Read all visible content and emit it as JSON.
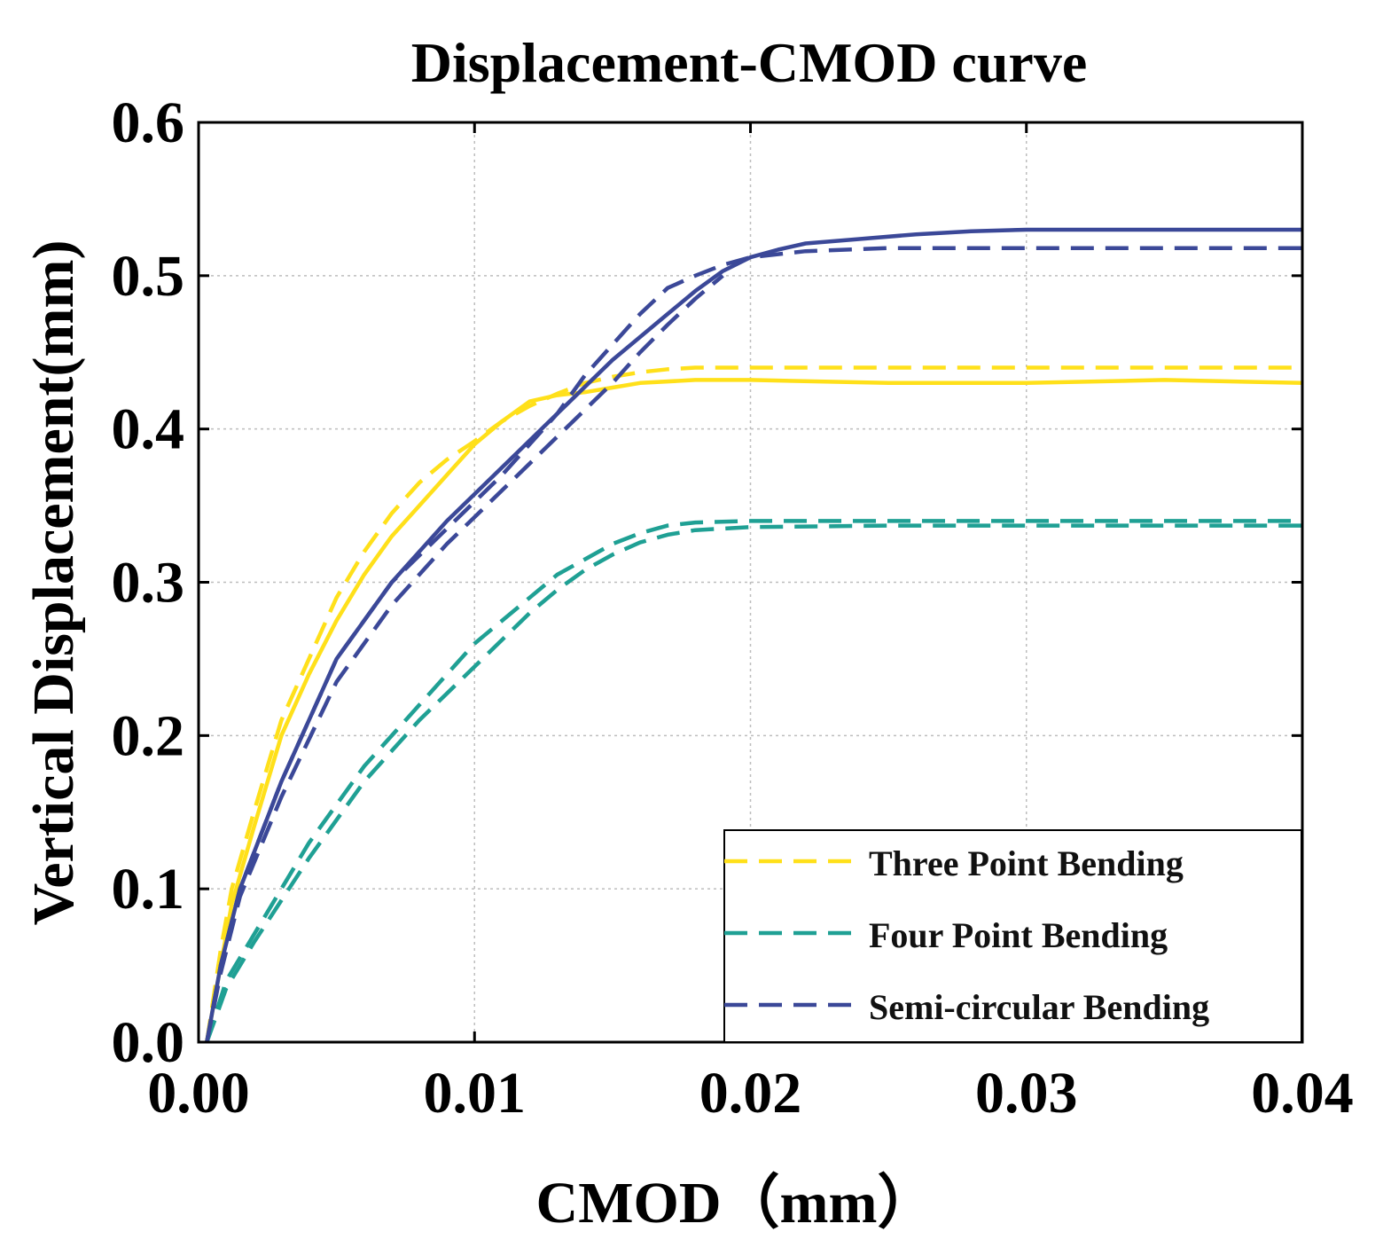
{
  "chart_data": {
    "type": "line",
    "title": "Displacement-CMOD curve",
    "xlabel": "CMOD（mm）",
    "ylabel": "Vertical Displacement(mm)",
    "xlim": [
      0,
      0.04
    ],
    "ylim": [
      0,
      0.6
    ],
    "xticks": [
      0,
      0.01,
      0.02,
      0.03,
      0.04
    ],
    "xtick_labels": [
      "0.00",
      "0.01",
      "0.02",
      "0.03",
      "0.04"
    ],
    "yticks": [
      0,
      0.1,
      0.2,
      0.3,
      0.4,
      0.5,
      0.6
    ],
    "ytick_labels": [
      "0.0",
      "0.1",
      "0.2",
      "0.3",
      "0.4",
      "0.5",
      "0.6"
    ],
    "grid": true,
    "legend_position": "bottom-right",
    "legend": [
      {
        "label": "Three Point Bending",
        "color": "#FFE01A"
      },
      {
        "label": "Four Point Bending",
        "color": "#1FA094"
      },
      {
        "label": "Semi-circular Bending",
        "color": "#3B4898"
      }
    ],
    "series": [
      {
        "name": "Three Point Bending (dashed)",
        "color": "#FFE01A",
        "dash": "dashed",
        "x": [
          0.0003,
          0.0008,
          0.0012,
          0.002,
          0.003,
          0.004,
          0.005,
          0.006,
          0.007,
          0.008,
          0.009,
          0.01,
          0.011,
          0.012,
          0.013,
          0.014,
          0.015,
          0.016,
          0.017,
          0.018,
          0.02,
          0.025,
          0.03,
          0.035,
          0.04
        ],
        "y": [
          0.0,
          0.06,
          0.1,
          0.15,
          0.21,
          0.25,
          0.29,
          0.32,
          0.345,
          0.365,
          0.38,
          0.392,
          0.405,
          0.415,
          0.423,
          0.43,
          0.434,
          0.437,
          0.439,
          0.44,
          0.44,
          0.44,
          0.44,
          0.44,
          0.44
        ]
      },
      {
        "name": "Three Point Bending (solid)",
        "color": "#FFE01A",
        "dash": "solid",
        "x": [
          0.0003,
          0.0008,
          0.0012,
          0.002,
          0.003,
          0.004,
          0.005,
          0.006,
          0.007,
          0.008,
          0.009,
          0.01,
          0.011,
          0.012,
          0.013,
          0.014,
          0.015,
          0.016,
          0.018,
          0.02,
          0.025,
          0.03,
          0.035,
          0.04
        ],
        "y": [
          0.0,
          0.05,
          0.09,
          0.14,
          0.2,
          0.24,
          0.275,
          0.305,
          0.33,
          0.35,
          0.37,
          0.39,
          0.405,
          0.418,
          0.422,
          0.424,
          0.427,
          0.43,
          0.432,
          0.432,
          0.43,
          0.43,
          0.432,
          0.43
        ]
      },
      {
        "name": "Four Point Bending (dashed upper)",
        "color": "#1FA094",
        "dash": "dashed",
        "x": [
          0.0003,
          0.001,
          0.002,
          0.004,
          0.006,
          0.008,
          0.01,
          0.012,
          0.013,
          0.014,
          0.015,
          0.016,
          0.017,
          0.018,
          0.02,
          0.025,
          0.03,
          0.035,
          0.04
        ],
        "y": [
          0.0,
          0.04,
          0.07,
          0.13,
          0.18,
          0.22,
          0.26,
          0.29,
          0.305,
          0.315,
          0.325,
          0.332,
          0.337,
          0.339,
          0.34,
          0.34,
          0.34,
          0.34,
          0.34
        ]
      },
      {
        "name": "Four Point Bending (dashed lower)",
        "color": "#1FA094",
        "dash": "dashed",
        "x": [
          0.0003,
          0.001,
          0.002,
          0.004,
          0.006,
          0.008,
          0.01,
          0.012,
          0.013,
          0.014,
          0.015,
          0.016,
          0.017,
          0.018,
          0.02,
          0.025,
          0.03,
          0.035,
          0.04
        ],
        "y": [
          0.0,
          0.035,
          0.065,
          0.12,
          0.17,
          0.21,
          0.245,
          0.28,
          0.295,
          0.308,
          0.318,
          0.326,
          0.331,
          0.334,
          0.336,
          0.337,
          0.337,
          0.337,
          0.337
        ]
      },
      {
        "name": "Semi-circular Bending (dashed)",
        "color": "#3B4898",
        "dash": "dashed",
        "x": [
          0.0003,
          0.0008,
          0.0015,
          0.003,
          0.005,
          0.007,
          0.009,
          0.011,
          0.012,
          0.013,
          0.014,
          0.015,
          0.016,
          0.017,
          0.018,
          0.019,
          0.02,
          0.022,
          0.025,
          0.03,
          0.035,
          0.04
        ],
        "y": [
          0.0,
          0.05,
          0.1,
          0.17,
          0.25,
          0.3,
          0.335,
          0.37,
          0.39,
          0.41,
          0.435,
          0.455,
          0.475,
          0.492,
          0.5,
          0.507,
          0.512,
          0.516,
          0.518,
          0.518,
          0.518,
          0.518
        ]
      },
      {
        "name": "Semi-circular Bending (solid)",
        "color": "#3B4898",
        "dash": "solid",
        "x": [
          0.0003,
          0.0008,
          0.0015,
          0.003,
          0.005,
          0.007,
          0.009,
          0.011,
          0.013,
          0.015,
          0.017,
          0.018,
          0.019,
          0.02,
          0.021,
          0.022,
          0.024,
          0.026,
          0.028,
          0.03,
          0.035,
          0.04
        ],
        "y": [
          0.0,
          0.05,
          0.1,
          0.17,
          0.25,
          0.3,
          0.34,
          0.375,
          0.41,
          0.445,
          0.475,
          0.49,
          0.503,
          0.512,
          0.517,
          0.521,
          0.524,
          0.527,
          0.529,
          0.53,
          0.53,
          0.53
        ]
      },
      {
        "name": "Semi-circular Bending (dashed lower)",
        "color": "#3B4898",
        "dash": "dashed",
        "x": [
          0.0003,
          0.0008,
          0.0015,
          0.003,
          0.005,
          0.007,
          0.009,
          0.011,
          0.013,
          0.015,
          0.016,
          0.017,
          0.018,
          0.019
        ],
        "y": [
          0.0,
          0.045,
          0.095,
          0.16,
          0.235,
          0.285,
          0.325,
          0.36,
          0.395,
          0.43,
          0.45,
          0.468,
          0.485,
          0.5
        ]
      }
    ]
  }
}
